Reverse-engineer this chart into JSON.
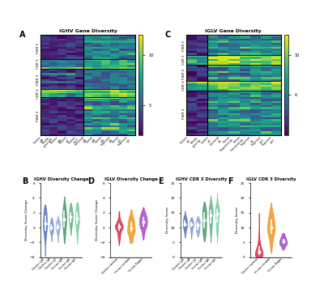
{
  "fig_width": 4.0,
  "fig_height": 3.57,
  "dpi": 100,
  "heatmap_A_title": "IGHV Gene Diversity",
  "heatmap_C_title": "IGLV Gene Diversity",
  "panel_labels": [
    "A",
    "B",
    "C",
    "D",
    "E",
    "F"
  ],
  "heatmap_ylabel_A": [
    "FWR 1",
    "CDR 1",
    "FWR 2",
    "CDR 2",
    "FWR 3"
  ],
  "heatmap_ylabel_C": [
    "FWR 1",
    "CDR 1",
    "FWR 2",
    "CDR 2",
    "FWR 3"
  ],
  "group_sizes_A": [
    12,
    5,
    10,
    4,
    19
  ],
  "group_sizes_C": [
    10,
    5,
    8,
    5,
    22
  ],
  "heatmap_A_cols": 11,
  "heatmap_C_cols": 9,
  "heatmap_vmin": 2,
  "heatmap_vmax": 12,
  "colorbar_ticks_A": [
    5,
    10
  ],
  "colorbar_ticks_C": [
    6,
    10
  ],
  "violin_B_title": "IGHV Diversity Change",
  "violin_D_title": "IGLV Diversity Change",
  "violin_E_title": "IGHV CDR 3 Diversity",
  "violin_F_title": "IGLV CDR 3 Diversity",
  "violin_B_colors": [
    "#3a5fb0",
    "#6080c8",
    "#8099d0",
    "#2d8b57",
    "#48a870",
    "#60c890"
  ],
  "violin_D_colors": [
    "#cc1133",
    "#ee8800",
    "#9933bb"
  ],
  "violin_E_colors": [
    "#3a5fb0",
    "#6080c8",
    "#8099d0",
    "#2d8b57",
    "#48a870",
    "#60c890"
  ],
  "violin_F_colors": [
    "#cc1133",
    "#ee8800",
    "#9933bb"
  ],
  "violin_B_labels": [
    "Chicken IgM",
    "Chicken IgA",
    "Chicken IgY",
    "Human IgM",
    "Human IgA",
    "Human IgG"
  ],
  "violin_D_labels": [
    "Chicken Lambda",
    "Human Lambda",
    "Human Kappa"
  ],
  "violin_E_labels": [
    "Chicken IgM",
    "Chicken IgA",
    "Chicken IgY",
    "Human IgM",
    "Human IgA",
    "Human IgG"
  ],
  "violin_F_labels": [
    "Chicken Lambda",
    "Human Lambda",
    "Human Kappa"
  ],
  "violin_B_ylabel": "Diversity Score Change",
  "violin_D_ylabel": "Diversity Score Change",
  "violin_E_ylabel": "Diversity Score",
  "violin_F_ylabel": "Diversity Score",
  "violin_B_ylim": [
    -4,
    6
  ],
  "violin_D_ylim": [
    -4,
    6
  ],
  "violin_E_ylim": [
    0,
    25
  ],
  "violin_F_ylim": [
    0,
    25
  ],
  "background_color": "#ffffff"
}
